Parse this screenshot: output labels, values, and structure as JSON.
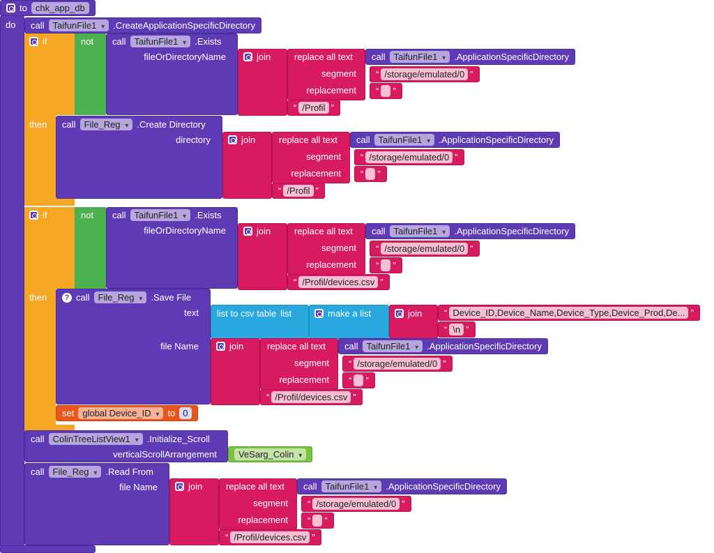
{
  "header": {
    "to": "to",
    "name": "chk_app_db",
    "do": "do"
  },
  "create_dir": {
    "call": "call",
    "component": "TaifunFile1",
    "method": ".CreateApplicationSpecificDirectory"
  },
  "if_1": {
    "if": "if",
    "not": "not",
    "call": "call",
    "component": "TaifunFile1",
    "method": ".Exists",
    "param": "fileOrDirectoryName",
    "arg": {
      "join": "join",
      "replace": "replace all text",
      "call": "call",
      "component": "TaifunFile1",
      "method": ".ApplicationSpecificDirectory",
      "segment_label": "segment",
      "segment": "/storage/emulated/0",
      "replacement_label": "replacement",
      "suffix": "/Profil"
    },
    "then": "then",
    "create": {
      "call": "call",
      "component": "File_Reg",
      "method": ".Create Directory",
      "param": "directory",
      "arg": {
        "join": "join",
        "replace": "replace all text",
        "call": "call",
        "component": "TaifunFile1",
        "method": ".ApplicationSpecificDirectory",
        "segment_label": "segment",
        "segment": "/storage/emulated/0",
        "replacement_label": "replacement",
        "suffix": "/Profil"
      }
    }
  },
  "if_2": {
    "if": "if",
    "not": "not",
    "call": "call",
    "component": "TaifunFile1",
    "method": ".Exists",
    "param": "fileOrDirectoryName",
    "arg": {
      "join": "join",
      "replace": "replace all text",
      "call": "call",
      "component": "TaifunFile1",
      "method": ".ApplicationSpecificDirectory",
      "segment_label": "segment",
      "segment": "/storage/emulated/0",
      "replacement_label": "replacement",
      "suffix": "/Profil/devices.csv"
    },
    "then": "then",
    "save": {
      "call": "call",
      "component": "File_Reg",
      "method": ".Save File",
      "param_text": "text",
      "csv": "list to csv table",
      "csv_param": "list",
      "make_list": "make a list",
      "join": "join",
      "item_1": "Device_ID,Device_Name,Device_Type,Device_Prod,De...",
      "item_2": "\\n",
      "param_file": "file Name",
      "arg": {
        "join": "join",
        "replace": "replace all text",
        "call": "call",
        "component": "TaifunFile1",
        "method": ".ApplicationSpecificDirectory",
        "segment_label": "segment",
        "segment": "/storage/emulated/0",
        "replacement_label": "replacement",
        "suffix": "/Profil/devices.csv"
      }
    },
    "set": {
      "set": "set",
      "variable": "global Device_ID",
      "to": "to",
      "value": 0
    }
  },
  "init_scroll": {
    "call": "call",
    "component": "ColinTreeListView1",
    "method": ".Initialize_Scroll",
    "param": "verticalScrollArrangement",
    "value": "VeSarg_Colin"
  },
  "read": {
    "call": "call",
    "component": "File_Reg",
    "method": ".Read From",
    "param": "file Name",
    "arg": {
      "join": "join",
      "replace": "replace all text",
      "call": "call",
      "component": "TaifunFile1",
      "method": ".ApplicationSpecificDirectory",
      "segment_label": "segment",
      "segment": "/storage/emulated/0",
      "replacement_label": "replacement",
      "suffix": "/Profil/devices.csv"
    }
  }
}
